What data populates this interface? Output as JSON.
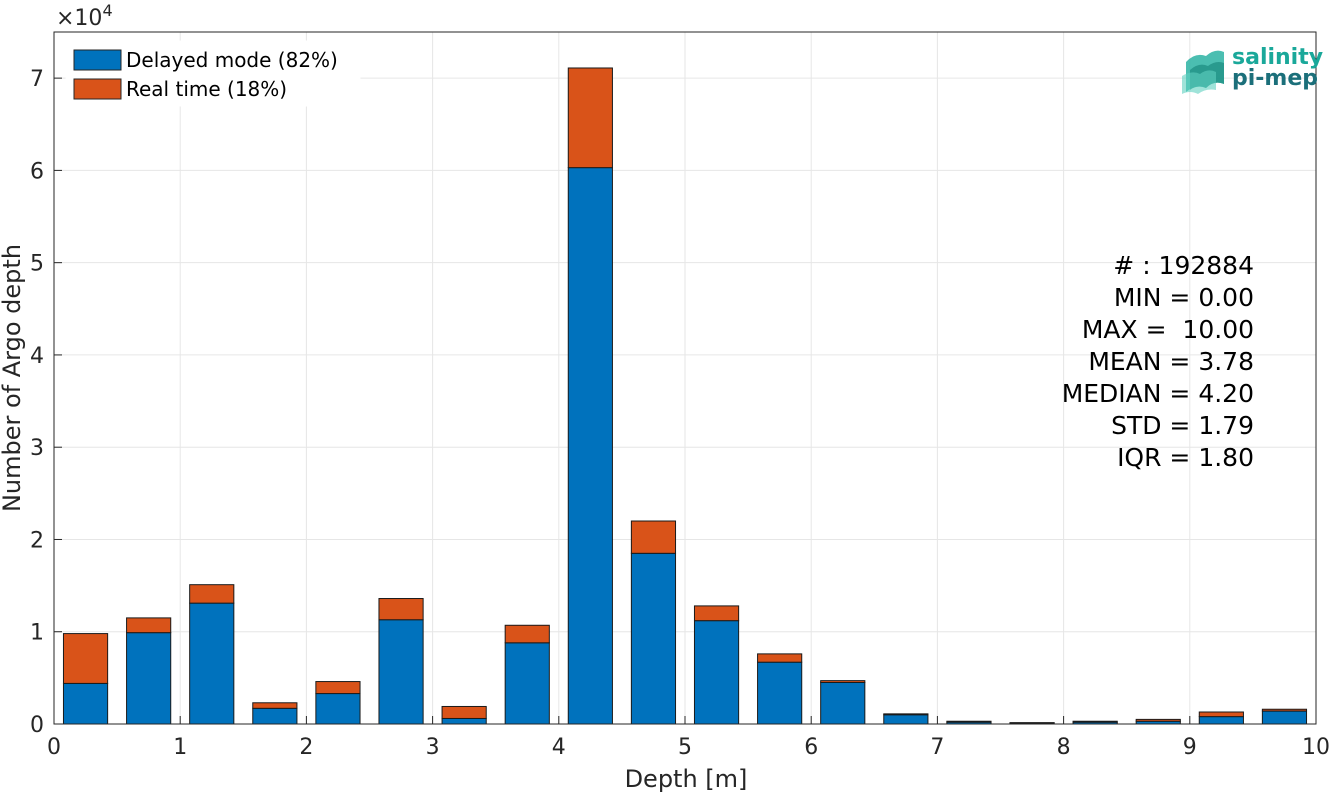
{
  "chart_data": {
    "type": "bar",
    "stacked": true,
    "xlabel": "Depth [m]",
    "ylabel": "Number of Argo depth",
    "xlim": [
      0,
      10
    ],
    "ylim": [
      0,
      75000
    ],
    "x_ticks": [
      "0",
      "1",
      "2",
      "3",
      "4",
      "5",
      "6",
      "7",
      "8",
      "9",
      "10"
    ],
    "y_ticks": [
      "0",
      "1",
      "2",
      "3",
      "4",
      "5",
      "6",
      "7"
    ],
    "y_exponent_label": "×10",
    "y_exponent_power": "4",
    "grid": true,
    "legend_position": "top-left",
    "x": [
      0.25,
      0.75,
      1.25,
      1.75,
      2.25,
      2.75,
      3.25,
      3.75,
      4.25,
      4.75,
      5.25,
      5.75,
      6.25,
      6.75,
      7.25,
      7.75,
      8.25,
      8.75,
      9.25,
      9.75
    ],
    "series": [
      {
        "name": "Delayed mode (82%)",
        "color": "#0072bd",
        "values": [
          4400,
          9900,
          13100,
          1700,
          3300,
          11300,
          600,
          8800,
          60300,
          18500,
          11200,
          6700,
          4500,
          1000,
          200,
          100,
          200,
          300,
          800,
          1400
        ]
      },
      {
        "name": "Real time (18%)",
        "color": "#d95319",
        "values": [
          5400,
          1600,
          2000,
          600,
          1300,
          2300,
          1300,
          1900,
          10800,
          3500,
          1600,
          900,
          200,
          100,
          100,
          50,
          100,
          200,
          500,
          200
        ]
      }
    ],
    "stats_text": [
      "# : 192884",
      "MIN = 0.00",
      "MAX =  10.00",
      "MEAN = 3.78",
      "MEDIAN = 4.20",
      "STD = 1.79",
      "IQR = 1.80"
    ]
  },
  "logo": {
    "line1": "salinity",
    "line2": "pi-mep",
    "color1": "#1aa89a",
    "color2": "#1b6f7a"
  }
}
